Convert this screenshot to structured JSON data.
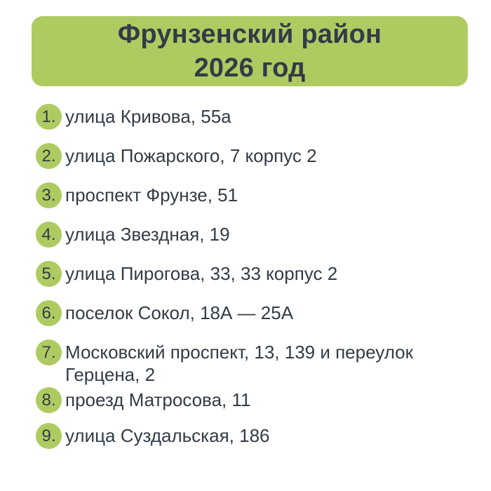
{
  "header": {
    "title_line1": "Фрунзенский район",
    "title_line2": "2026 год"
  },
  "list": {
    "items": [
      {
        "number": "1.",
        "text": "улица Кривова, 55а"
      },
      {
        "number": "2.",
        "text": "улица Пожарского, 7 корпус 2"
      },
      {
        "number": "3.",
        "text": "проспект Фрунзе, 51"
      },
      {
        "number": "4.",
        "text": "улица Звездная, 19"
      },
      {
        "number": "5.",
        "text": "улица Пирогова, 33, 33 корпус 2"
      },
      {
        "number": "6.",
        "text": "поселок Сокол, 18А — 25А"
      },
      {
        "number": "7.",
        "text": "Московский проспект, 13, 139 и переулок Герцена, 2"
      },
      {
        "number": "8.",
        "text": "проезд Матросова, 11"
      },
      {
        "number": "9.",
        "text": "улица Суздальская, 186"
      }
    ]
  },
  "colors": {
    "accent_green": "#aecb62",
    "text_dark": "#333b46",
    "background": "#ffffff"
  }
}
